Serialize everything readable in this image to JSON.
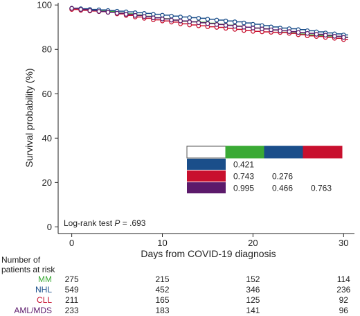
{
  "chart_data": {
    "type": "line",
    "title": "",
    "xlabel": "Days from COVID-19 diagnosis",
    "ylabel": "Survival probability (%)",
    "xlim": [
      -1.5,
      31.2
    ],
    "ylim": [
      -3,
      101
    ],
    "x_ticks": [
      "0",
      "10",
      "20",
      "30"
    ],
    "y_ticks": [
      "0",
      "20",
      "40",
      "60",
      "80",
      "100"
    ],
    "annotation": {
      "prefix": "Log-rank test ",
      "p": "P",
      "suffix": " = .693"
    },
    "risk_table": {
      "header_line1": "Number of",
      "header_line2": "patients at risk",
      "columns": [
        "0",
        "10",
        "20",
        "30"
      ],
      "rows": [
        {
          "name": "MM",
          "color": "#3aaa35",
          "values": [
            "275",
            "215",
            "152",
            "114"
          ]
        },
        {
          "name": "NHL",
          "color": "#1a4e8a",
          "values": [
            "549",
            "452",
            "346",
            "236"
          ]
        },
        {
          "name": "CLL",
          "color": "#c8102e",
          "values": [
            "211",
            "165",
            "125",
            "92"
          ]
        },
        {
          "name": "AML/MDS",
          "color": "#5c1a6b",
          "values": [
            "233",
            "183",
            "141",
            "96"
          ]
        }
      ]
    },
    "pvalue_matrix": {
      "header_colors": [
        "#ffffff",
        "#3aaa35",
        "#1a4e8a",
        "#c8102e"
      ],
      "rows": [
        {
          "color": "#1a4e8a",
          "values": [
            "0.421",
            "",
            ""
          ]
        },
        {
          "color": "#c8102e",
          "values": [
            "0.743",
            "0.276",
            ""
          ]
        },
        {
          "color": "#5c1a6b",
          "values": [
            "0.995",
            "0.466",
            "0.763"
          ]
        }
      ]
    },
    "series": [
      {
        "color": "#3aaa35",
        "x": [
          0,
          1,
          2,
          3,
          4,
          5,
          6,
          7,
          8,
          9,
          10,
          11,
          12,
          13,
          14,
          15,
          16,
          17,
          18,
          19,
          20,
          21,
          22,
          23,
          24,
          25,
          26,
          27,
          28,
          29,
          30
        ],
        "y": [
          98.5,
          98.0,
          97.6,
          97.3,
          97.0,
          96.4,
          96.0,
          95.5,
          94.9,
          94.3,
          93.8,
          93.2,
          92.7,
          92.4,
          92.2,
          91.8,
          91.3,
          90.9,
          90.5,
          90.0,
          89.6,
          89.3,
          88.7,
          87.7,
          87.4,
          86.9,
          86.5,
          86.3,
          86.0,
          85.8,
          85.5
        ]
      },
      {
        "color": "#1a4e8a",
        "x": [
          0,
          1,
          2,
          3,
          4,
          5,
          6,
          7,
          8,
          9,
          10,
          11,
          12,
          13,
          14,
          15,
          16,
          17,
          18,
          19,
          20,
          21,
          22,
          23,
          24,
          25,
          26,
          27,
          28,
          29,
          30
        ],
        "y": [
          98.5,
          98.3,
          98.0,
          97.8,
          97.5,
          97.2,
          96.9,
          96.5,
          96.2,
          95.8,
          95.4,
          95.0,
          94.6,
          94.3,
          94.0,
          93.6,
          93.2,
          92.8,
          92.4,
          91.9,
          91.3,
          90.7,
          90.1,
          89.6,
          89.3,
          88.9,
          88.4,
          87.9,
          87.4,
          87.0,
          86.5
        ]
      },
      {
        "color": "#c8102e",
        "x": [
          0,
          1,
          2,
          3,
          4,
          5,
          6,
          7,
          8,
          9,
          10,
          11,
          12,
          13,
          14,
          15,
          16,
          17,
          18,
          19,
          20,
          21,
          22,
          23,
          24,
          25,
          26,
          27,
          28,
          29,
          30
        ],
        "y": [
          98.0,
          97.6,
          97.3,
          97.0,
          96.7,
          96.0,
          95.3,
          94.6,
          94.0,
          93.3,
          92.8,
          92.3,
          91.5,
          91.0,
          90.6,
          90.2,
          89.9,
          89.5,
          89.0,
          88.5,
          88.1,
          87.9,
          87.7,
          87.6,
          87.2,
          86.6,
          86.1,
          85.8,
          85.4,
          85.0,
          84.4
        ]
      },
      {
        "color": "#5c1a6b",
        "x": [
          0,
          1,
          2,
          3,
          4,
          5,
          6,
          7,
          8,
          9,
          10,
          11,
          12,
          13,
          14,
          15,
          16,
          17,
          18,
          19,
          20,
          21,
          22,
          23,
          24,
          25,
          26,
          27,
          28,
          29,
          30
        ],
        "y": [
          98.5,
          98.0,
          97.5,
          97.1,
          96.7,
          96.3,
          95.8,
          95.3,
          94.8,
          94.2,
          93.7,
          93.2,
          92.8,
          92.4,
          92.0,
          91.6,
          91.2,
          90.8,
          90.4,
          90.0,
          89.6,
          89.2,
          88.8,
          88.4,
          88.0,
          87.6,
          87.2,
          86.8,
          86.4,
          85.9,
          85.4
        ]
      }
    ]
  }
}
